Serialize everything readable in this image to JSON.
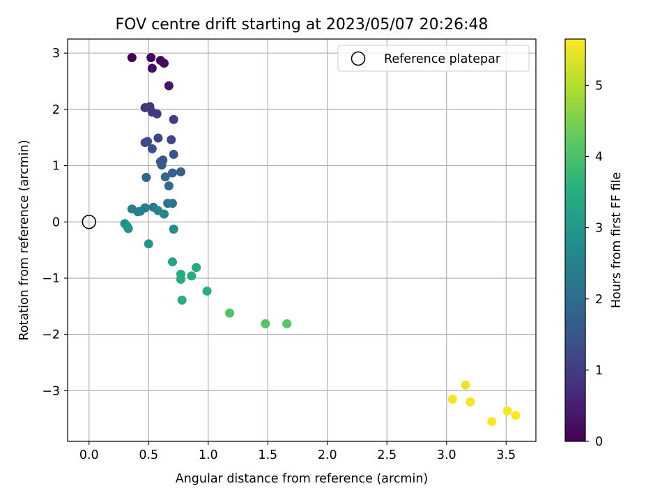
{
  "chart_data": {
    "type": "scatter",
    "title": "FOV centre drift starting at 2023/05/07 20:26:48",
    "xlabel": "Angular distance from reference (arcmin)",
    "ylabel": "Rotation from reference (arcmin)",
    "xlim": [
      -0.18,
      3.75
    ],
    "ylim": [
      -3.9,
      3.25
    ],
    "xticks": [
      0.0,
      0.5,
      1.0,
      1.5,
      2.0,
      2.5,
      3.0,
      3.5
    ],
    "xtick_labels": [
      "0.0",
      "0.5",
      "1.0",
      "1.5",
      "2.0",
      "2.5",
      "3.0",
      "3.5"
    ],
    "yticks": [
      -3,
      -2,
      -1,
      0,
      1,
      2,
      3
    ],
    "ytick_labels": [
      "−3",
      "−2",
      "−1",
      "0",
      "1",
      "2",
      "3"
    ],
    "grid": true,
    "legend": {
      "position": "top-right",
      "entries": [
        "Reference platepar"
      ]
    },
    "reference_point": {
      "x": 0.0,
      "y": 0.0,
      "label": "Reference platepar"
    },
    "colorbar": {
      "label": "Hours from first FF file",
      "colormap": "viridis",
      "range": [
        0,
        5.65
      ],
      "ticks": [
        0,
        1,
        2,
        3,
        4,
        5
      ],
      "tick_labels": [
        "0",
        "1",
        "2",
        "3",
        "4",
        "5"
      ]
    },
    "points": [
      {
        "x": 0.36,
        "y": 2.92,
        "c": 0.0
      },
      {
        "x": 0.52,
        "y": 2.92,
        "c": 0.05
      },
      {
        "x": 0.6,
        "y": 2.87,
        "c": 0.1
      },
      {
        "x": 0.63,
        "y": 2.82,
        "c": 0.15
      },
      {
        "x": 0.53,
        "y": 2.73,
        "c": 0.2
      },
      {
        "x": 0.67,
        "y": 2.42,
        "c": 0.35
      },
      {
        "x": 0.47,
        "y": 2.03,
        "c": 0.8
      },
      {
        "x": 0.51,
        "y": 2.05,
        "c": 0.85
      },
      {
        "x": 0.53,
        "y": 1.95,
        "c": 0.9
      },
      {
        "x": 0.57,
        "y": 1.92,
        "c": 0.95
      },
      {
        "x": 0.71,
        "y": 1.82,
        "c": 1.0
      },
      {
        "x": 0.58,
        "y": 1.49,
        "c": 1.15
      },
      {
        "x": 0.69,
        "y": 1.46,
        "c": 1.2
      },
      {
        "x": 0.47,
        "y": 1.41,
        "c": 1.25
      },
      {
        "x": 0.49,
        "y": 1.43,
        "c": 1.3
      },
      {
        "x": 0.53,
        "y": 1.3,
        "c": 1.35
      },
      {
        "x": 0.71,
        "y": 1.2,
        "c": 1.45
      },
      {
        "x": 0.6,
        "y": 1.07,
        "c": 1.5
      },
      {
        "x": 0.62,
        "y": 1.1,
        "c": 1.55
      },
      {
        "x": 0.61,
        "y": 1.01,
        "c": 1.6
      },
      {
        "x": 0.7,
        "y": 0.87,
        "c": 1.7
      },
      {
        "x": 0.77,
        "y": 0.89,
        "c": 1.75
      },
      {
        "x": 0.48,
        "y": 0.79,
        "c": 1.8
      },
      {
        "x": 0.64,
        "y": 0.8,
        "c": 1.85
      },
      {
        "x": 0.67,
        "y": 0.64,
        "c": 1.95
      },
      {
        "x": 0.66,
        "y": 0.33,
        "c": 2.15
      },
      {
        "x": 0.7,
        "y": 0.33,
        "c": 2.2
      },
      {
        "x": 0.36,
        "y": 0.23,
        "c": 2.4
      },
      {
        "x": 0.41,
        "y": 0.18,
        "c": 2.45
      },
      {
        "x": 0.43,
        "y": 0.19,
        "c": 2.5
      },
      {
        "x": 0.47,
        "y": 0.25,
        "c": 2.35
      },
      {
        "x": 0.54,
        "y": 0.26,
        "c": 2.3
      },
      {
        "x": 0.58,
        "y": 0.2,
        "c": 2.55
      },
      {
        "x": 0.63,
        "y": 0.14,
        "c": 2.6
      },
      {
        "x": 0.3,
        "y": -0.03,
        "c": 2.8
      },
      {
        "x": 0.32,
        "y": -0.08,
        "c": 2.85
      },
      {
        "x": 0.33,
        "y": -0.12,
        "c": 2.9
      },
      {
        "x": 0.71,
        "y": -0.13,
        "c": 2.75
      },
      {
        "x": 0.5,
        "y": -0.39,
        "c": 2.95
      },
      {
        "x": 0.7,
        "y": -0.71,
        "c": 3.3
      },
      {
        "x": 0.9,
        "y": -0.81,
        "c": 3.4
      },
      {
        "x": 0.77,
        "y": -0.93,
        "c": 3.45
      },
      {
        "x": 0.86,
        "y": -0.96,
        "c": 3.5
      },
      {
        "x": 0.77,
        "y": -1.02,
        "c": 3.45
      },
      {
        "x": 0.99,
        "y": -1.23,
        "c": 3.55
      },
      {
        "x": 0.78,
        "y": -1.39,
        "c": 3.5
      },
      {
        "x": 1.18,
        "y": -1.62,
        "c": 4.05
      },
      {
        "x": 1.48,
        "y": -1.81,
        "c": 4.1
      },
      {
        "x": 1.66,
        "y": -1.81,
        "c": 4.15
      },
      {
        "x": 3.16,
        "y": -2.9,
        "c": 5.5
      },
      {
        "x": 3.05,
        "y": -3.15,
        "c": 5.55
      },
      {
        "x": 3.2,
        "y": -3.2,
        "c": 5.55
      },
      {
        "x": 3.51,
        "y": -3.36,
        "c": 5.6
      },
      {
        "x": 3.58,
        "y": -3.44,
        "c": 5.62
      },
      {
        "x": 3.38,
        "y": -3.55,
        "c": 5.65
      }
    ]
  }
}
